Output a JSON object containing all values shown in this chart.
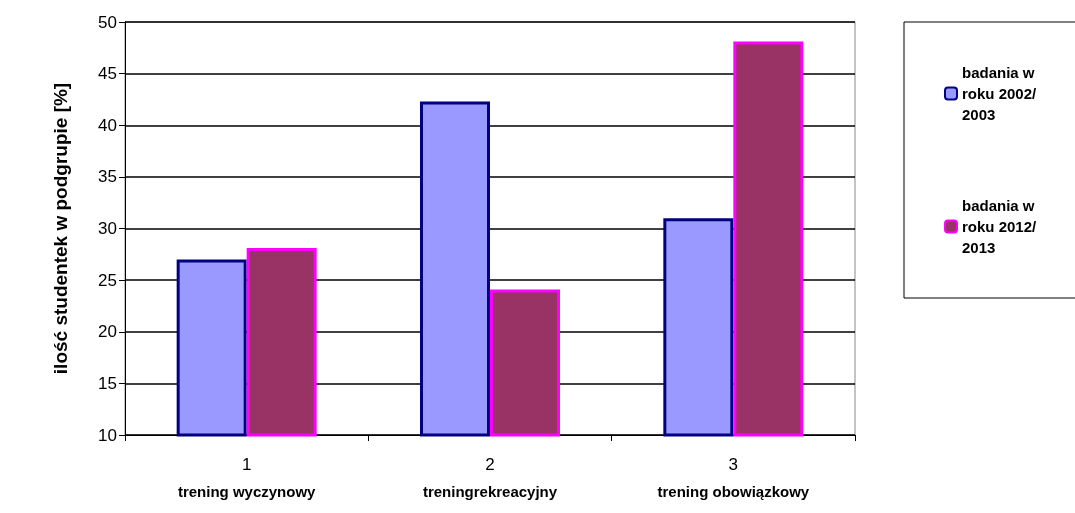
{
  "chart_data": {
    "type": "bar",
    "categories": [
      "1\ntrening wyczynowy",
      "2\ntreningrekreacyjny",
      "3\ntrening obowiązkowy"
    ],
    "ylabel": "ilość studentek w podgrupie [%]",
    "series": [
      {
        "name": "badania w roku 2002/2003",
        "color": "#9999ff",
        "values": [
          27,
          42.3,
          31
        ]
      },
      {
        "name": "badania w roku 2012/2013",
        "color": "#993366",
        "values": [
          28.1,
          24.1,
          48.1
        ]
      }
    ],
    "ylim": [
      10,
      50
    ],
    "yticks": [
      10,
      15,
      20,
      25,
      30,
      35,
      40,
      45,
      50
    ],
    "grid": "y",
    "legend": "right"
  }
}
